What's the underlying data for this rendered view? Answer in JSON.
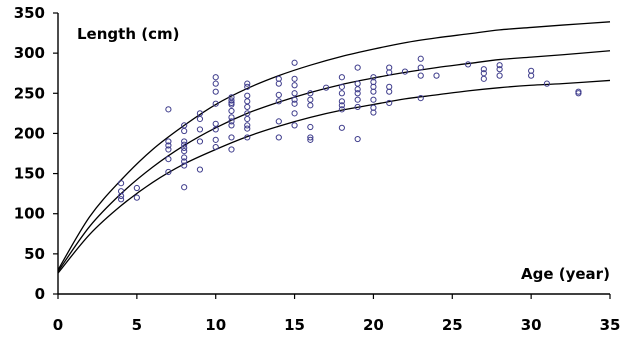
{
  "chart_data": {
    "type": "scatter",
    "title": "",
    "ylabel": "Length (cm)",
    "xlabel": "Age (year)",
    "xlim": [
      0,
      35
    ],
    "ylim": [
      0,
      350
    ],
    "xticks": [
      0,
      5,
      10,
      15,
      20,
      25,
      30,
      35
    ],
    "yticks": [
      0,
      50,
      100,
      150,
      200,
      250,
      300,
      350
    ],
    "grid": false,
    "series": [
      {
        "kind": "points",
        "marker": "open-circle",
        "color": "#3f3d8c",
        "points": [
          [
            4,
            138
          ],
          [
            4,
            128
          ],
          [
            4,
            122
          ],
          [
            4,
            118
          ],
          [
            5,
            132
          ],
          [
            5,
            120
          ],
          [
            7,
            230
          ],
          [
            7,
            190
          ],
          [
            7,
            185
          ],
          [
            7,
            180
          ],
          [
            7,
            168
          ],
          [
            7,
            152
          ],
          [
            8,
            210
          ],
          [
            8,
            203
          ],
          [
            8,
            190
          ],
          [
            8,
            186
          ],
          [
            8,
            182
          ],
          [
            8,
            178
          ],
          [
            8,
            170
          ],
          [
            8,
            165
          ],
          [
            8,
            160
          ],
          [
            8,
            133
          ],
          [
            9,
            225
          ],
          [
            9,
            218
          ],
          [
            9,
            205
          ],
          [
            9,
            190
          ],
          [
            9,
            155
          ],
          [
            10,
            270
          ],
          [
            10,
            262
          ],
          [
            10,
            252
          ],
          [
            10,
            237
          ],
          [
            10,
            212
          ],
          [
            10,
            205
          ],
          [
            10,
            192
          ],
          [
            10,
            183
          ],
          [
            11,
            245
          ],
          [
            11,
            241
          ],
          [
            11,
            238
          ],
          [
            11,
            236
          ],
          [
            11,
            228
          ],
          [
            11,
            220
          ],
          [
            11,
            215
          ],
          [
            11,
            210
          ],
          [
            11,
            195
          ],
          [
            11,
            180
          ],
          [
            12,
            262
          ],
          [
            12,
            258
          ],
          [
            12,
            247
          ],
          [
            12,
            240
          ],
          [
            12,
            233
          ],
          [
            12,
            225
          ],
          [
            12,
            218
          ],
          [
            12,
            210
          ],
          [
            12,
            206
          ],
          [
            12,
            195
          ],
          [
            14,
            268
          ],
          [
            14,
            262
          ],
          [
            14,
            248
          ],
          [
            14,
            240
          ],
          [
            14,
            215
          ],
          [
            14,
            195
          ],
          [
            15,
            288
          ],
          [
            15,
            268
          ],
          [
            15,
            260
          ],
          [
            15,
            250
          ],
          [
            15,
            242
          ],
          [
            15,
            237
          ],
          [
            15,
            225
          ],
          [
            15,
            210
          ],
          [
            16,
            250
          ],
          [
            16,
            242
          ],
          [
            16,
            235
          ],
          [
            16,
            208
          ],
          [
            16,
            195
          ],
          [
            16,
            192
          ],
          [
            17,
            257
          ],
          [
            18,
            270
          ],
          [
            18,
            258
          ],
          [
            18,
            250
          ],
          [
            18,
            240
          ],
          [
            18,
            235
          ],
          [
            18,
            230
          ],
          [
            18,
            207
          ],
          [
            19,
            282
          ],
          [
            19,
            262
          ],
          [
            19,
            255
          ],
          [
            19,
            250
          ],
          [
            19,
            242
          ],
          [
            19,
            233
          ],
          [
            19,
            193
          ],
          [
            20,
            270
          ],
          [
            20,
            264
          ],
          [
            20,
            258
          ],
          [
            20,
            252
          ],
          [
            20,
            242
          ],
          [
            20,
            232
          ],
          [
            20,
            226
          ],
          [
            21,
            282
          ],
          [
            21,
            276
          ],
          [
            21,
            258
          ],
          [
            21,
            252
          ],
          [
            21,
            238
          ],
          [
            22,
            277
          ],
          [
            23,
            293
          ],
          [
            23,
            282
          ],
          [
            23,
            272
          ],
          [
            23,
            244
          ],
          [
            24,
            272
          ],
          [
            26,
            286
          ],
          [
            27,
            280
          ],
          [
            27,
            275
          ],
          [
            27,
            268
          ],
          [
            28,
            285
          ],
          [
            28,
            280
          ],
          [
            28,
            272
          ],
          [
            30,
            278
          ],
          [
            30,
            272
          ],
          [
            31,
            262
          ],
          [
            33,
            252
          ],
          [
            33,
            250
          ]
        ]
      },
      {
        "kind": "line",
        "role": "upper-bound",
        "color": "#000000",
        "points": [
          [
            0,
            30
          ],
          [
            2,
            96
          ],
          [
            4,
            142
          ],
          [
            6,
            180
          ],
          [
            8,
            210
          ],
          [
            10,
            236
          ],
          [
            12,
            256
          ],
          [
            14,
            272
          ],
          [
            16,
            285
          ],
          [
            18,
            296
          ],
          [
            20,
            305
          ],
          [
            22,
            313
          ],
          [
            24,
            319
          ],
          [
            26,
            324
          ],
          [
            28,
            329
          ],
          [
            30,
            332
          ],
          [
            32,
            335
          ],
          [
            35,
            339
          ]
        ]
      },
      {
        "kind": "line",
        "role": "mean",
        "color": "#000000",
        "points": [
          [
            0,
            28
          ],
          [
            2,
            84
          ],
          [
            4,
            125
          ],
          [
            6,
            158
          ],
          [
            8,
            185
          ],
          [
            10,
            207
          ],
          [
            12,
            225
          ],
          [
            14,
            239
          ],
          [
            16,
            251
          ],
          [
            18,
            261
          ],
          [
            20,
            269
          ],
          [
            22,
            276
          ],
          [
            24,
            282
          ],
          [
            26,
            287
          ],
          [
            28,
            292
          ],
          [
            30,
            295
          ],
          [
            32,
            298
          ],
          [
            35,
            303
          ]
        ]
      },
      {
        "kind": "line",
        "role": "lower-bound",
        "color": "#000000",
        "points": [
          [
            0,
            26
          ],
          [
            2,
            74
          ],
          [
            4,
            110
          ],
          [
            6,
            139
          ],
          [
            8,
            162
          ],
          [
            10,
            180
          ],
          [
            12,
            196
          ],
          [
            14,
            209
          ],
          [
            16,
            220
          ],
          [
            18,
            229
          ],
          [
            20,
            236
          ],
          [
            22,
            243
          ],
          [
            24,
            248
          ],
          [
            26,
            253
          ],
          [
            28,
            257
          ],
          [
            30,
            260
          ],
          [
            32,
            262
          ],
          [
            35,
            266
          ]
        ]
      }
    ]
  }
}
